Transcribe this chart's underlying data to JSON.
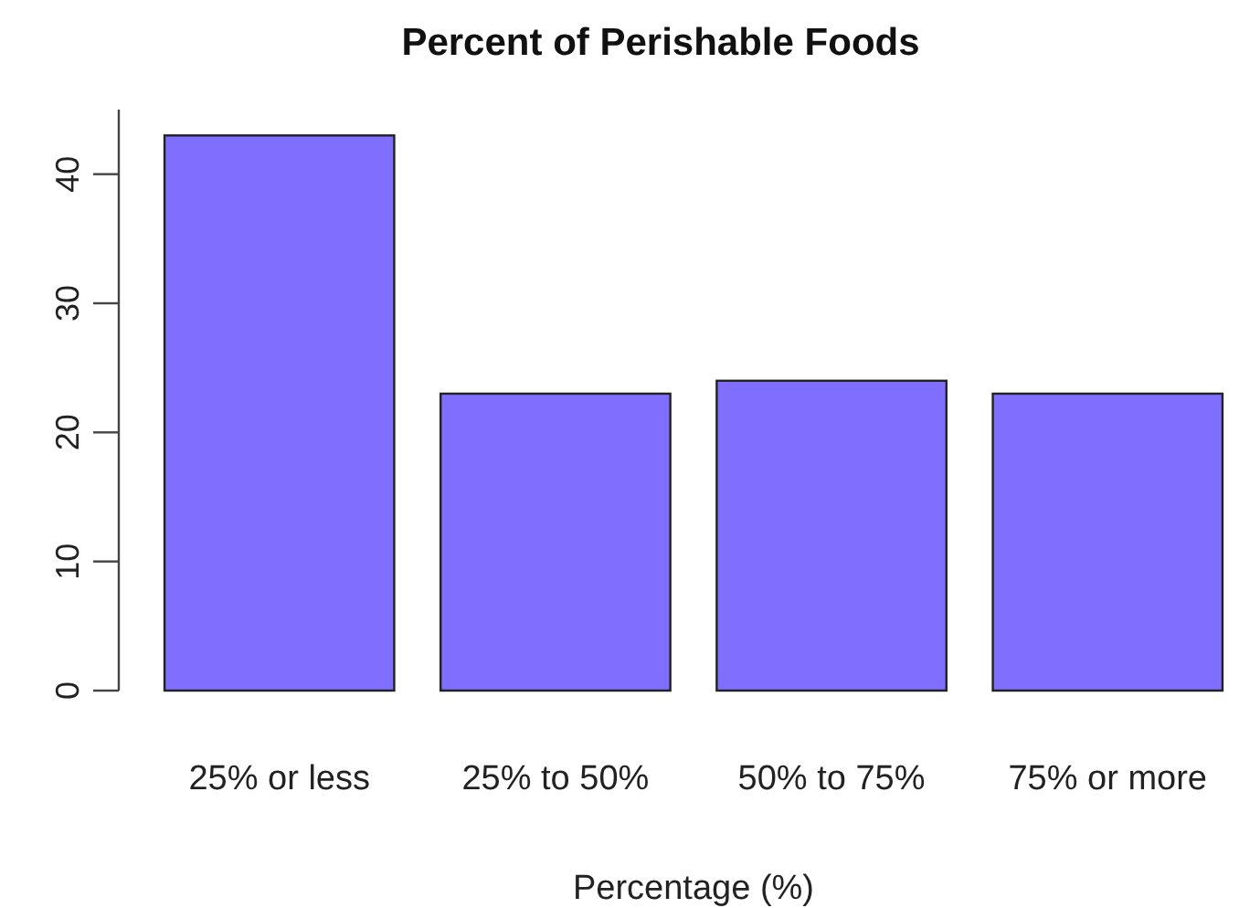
{
  "chart_data": {
    "type": "bar",
    "title": "Percent of Perishable Foods",
    "xlabel": "Percentage (%)",
    "categories": [
      "25% or less",
      "25% to 50%",
      "50% to 75%",
      "75% or more"
    ],
    "values": [
      43,
      23,
      24,
      23
    ],
    "color": "#806eff",
    "ylim": [
      0,
      45
    ],
    "yticks": [
      0,
      10,
      20,
      30,
      40
    ],
    "grid": false
  }
}
